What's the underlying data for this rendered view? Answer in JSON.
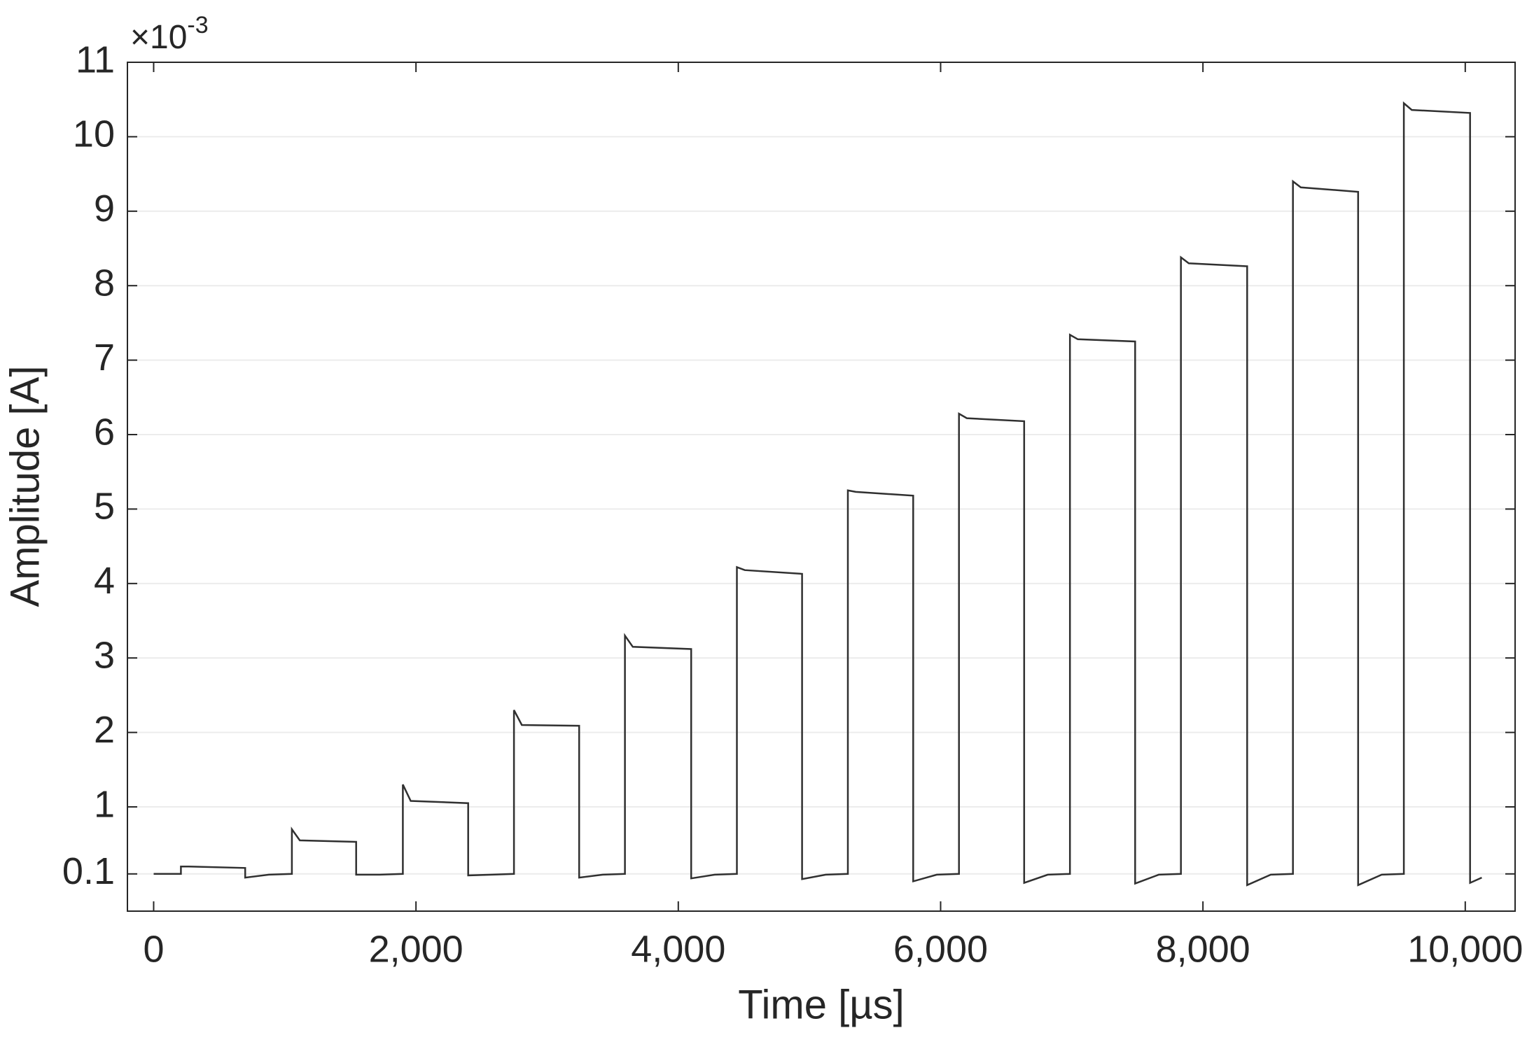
{
  "chart_data": {
    "type": "line",
    "x_label": "Time [µs]",
    "y_label": "Amplitude [A]",
    "y_multiplier": {
      "base": "×10",
      "exponent": "-3"
    },
    "xlim": [
      -200,
      10380
    ],
    "ylim": [
      -0.4,
      11
    ],
    "xticks": [
      0,
      {
        "value": 2000,
        "label": "2,000"
      },
      {
        "value": 4000,
        "label": "4,000"
      },
      {
        "value": 6000,
        "label": "6,000"
      },
      {
        "value": 8000,
        "label": "8,000"
      },
      {
        "value": 10000,
        "label": "10,000"
      }
    ],
    "yticks": [
      0.1,
      1,
      2,
      3,
      4,
      5,
      6,
      7,
      8,
      9,
      10,
      11
    ],
    "grid": true,
    "series": [
      {
        "color": "#303030",
        "x": [
          0,
          208,
          208,
          268,
          698,
          698,
          878,
          1054,
          1054,
          1114,
          1544,
          1544,
          1724,
          1900,
          1900,
          1960,
          2398,
          2398,
          2578,
          2747,
          2747,
          2807,
          3244,
          3244,
          3424,
          3593,
          3593,
          3653,
          4098,
          4098,
          4278,
          4447,
          4447,
          4507,
          4944,
          4944,
          5124,
          5293,
          5293,
          5353,
          5791,
          5791,
          5971,
          6140,
          6140,
          6200,
          6637,
          6637,
          6817,
          6986,
          6986,
          7046,
          7483,
          7483,
          7663,
          7832,
          7832,
          7892,
          8337,
          8337,
          8517,
          8686,
          8686,
          8746,
          9183,
          9183,
          9363,
          9532,
          9532,
          9592,
          10037,
          10037,
          10126
        ],
        "values": [
          0.1,
          0.1,
          0.2,
          0.2,
          0.18,
          0.05,
          0.09,
          0.1,
          0.7,
          0.55,
          0.53,
          0.09,
          0.09,
          0.1,
          1.3,
          1.08,
          1.05,
          0.08,
          0.09,
          0.1,
          2.3,
          2.1,
          2.09,
          0.05,
          0.09,
          0.1,
          3.3,
          3.15,
          3.12,
          0.04,
          0.09,
          0.1,
          4.22,
          4.18,
          4.13,
          0.03,
          0.09,
          0.1,
          5.25,
          5.23,
          5.18,
          0.0,
          0.09,
          0.1,
          6.28,
          6.22,
          6.18,
          -0.02,
          0.09,
          0.1,
          7.34,
          7.28,
          7.25,
          -0.03,
          0.09,
          0.1,
          8.38,
          8.3,
          8.26,
          -0.05,
          0.09,
          0.1,
          9.4,
          9.32,
          9.26,
          -0.05,
          0.09,
          0.1,
          10.45,
          10.36,
          10.32,
          -0.02,
          0.05
        ]
      }
    ]
  }
}
